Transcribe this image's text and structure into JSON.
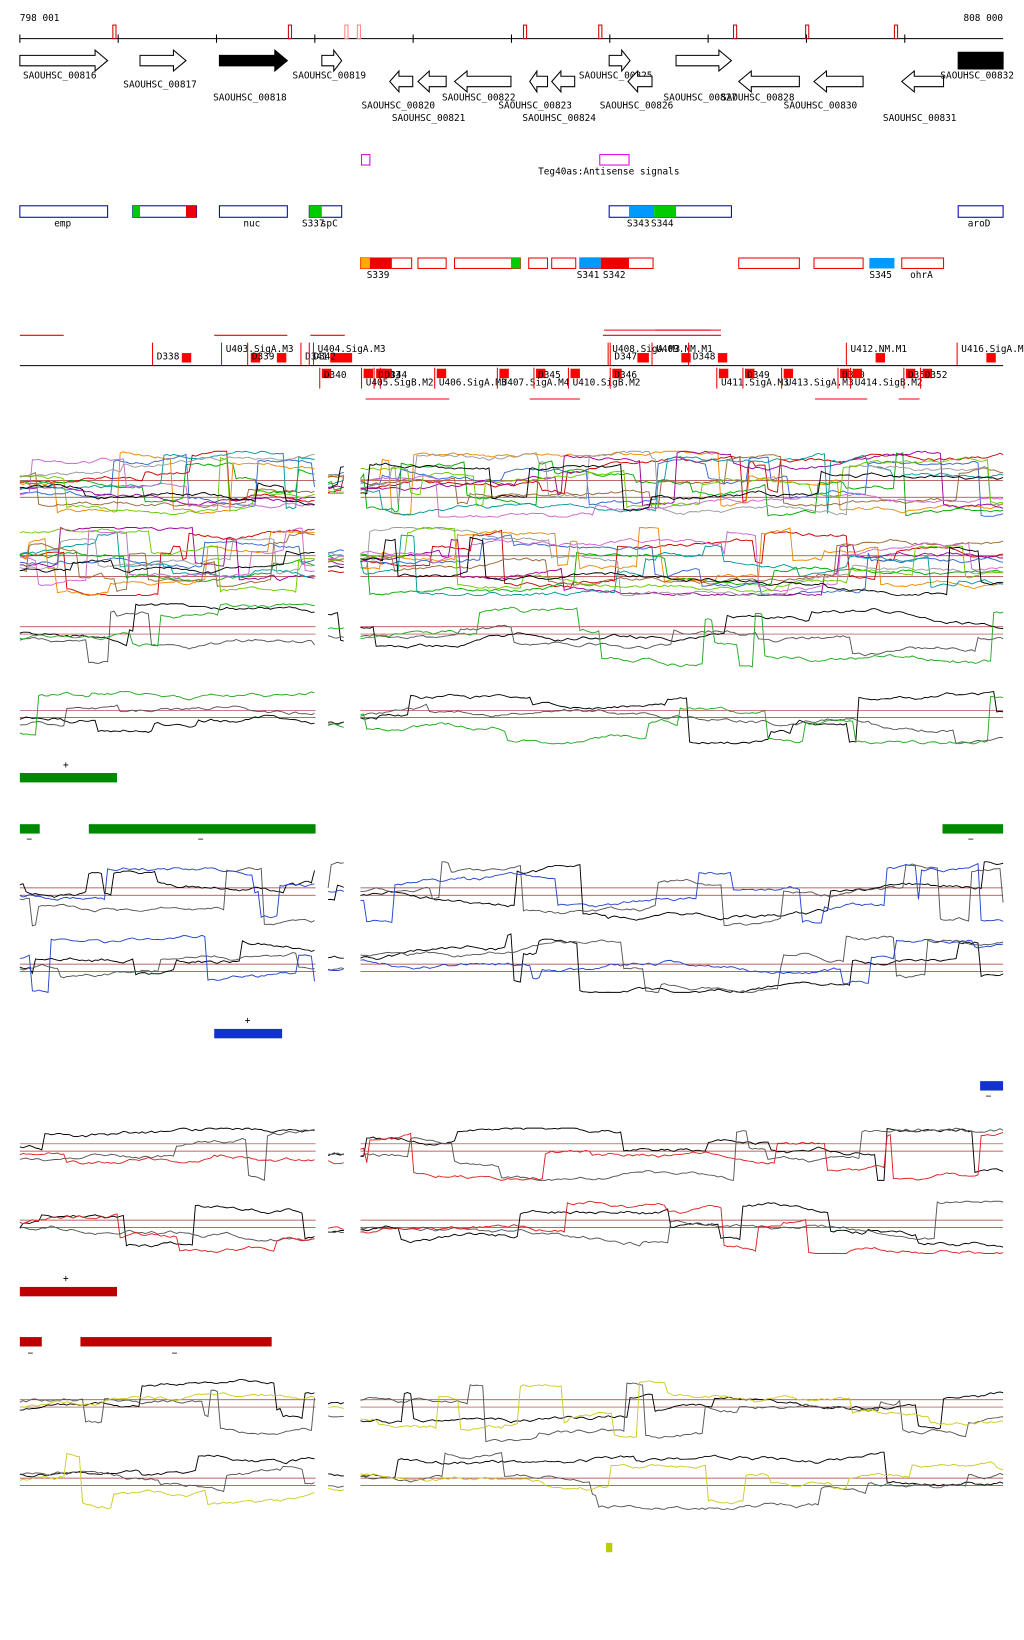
{
  "header": {
    "start": "798 001",
    "end": "808 000"
  },
  "genes": [
    "SAOUHSC_00816",
    "SAOUHSC_00817",
    "SAOUHSC_00818",
    "SAOUHSC_00819",
    "SAOUHSC_00820",
    "SAOUHSC_00821",
    "SAOUHSC_00822",
    "SAOUHSC_00823",
    "SAOUHSC_00824",
    "SAOUHSC_00825",
    "SAOUHSC_00826",
    "SAOUHSC_00827",
    "SAOUHSC_00828",
    "SAOUHSC_00830",
    "SAOUHSC_00831",
    "SAOUHSC_00832"
  ],
  "antisense": {
    "label": "Teg40as:Antisense signals"
  },
  "features": [
    "emp",
    "nuc",
    "S337",
    "spC",
    "S343",
    "S344",
    "aroD"
  ],
  "segments": [
    "S339",
    "S341",
    "S342",
    "S345",
    "ohrA"
  ],
  "promoters": [
    "D338",
    "U403.SigA.M3",
    "D339",
    "D341",
    "D342",
    "U404.SigA.M3",
    "D340",
    "D343",
    "D344",
    "U405.SigB.M2",
    "U406.SigA.M3",
    "U407.SigA.M4",
    "D345",
    "U410.SigB.M2",
    "D346",
    "U408.SigA.M3",
    "D347",
    "U409.NM.M1",
    "D348",
    "U411.SigA.M3",
    "D349",
    "U413.SigA.M3",
    "D350",
    "U412.NM.M1",
    "U414.SigB.M2",
    "D351",
    "D352",
    "U416.SigA.M"
  ],
  "strand_marks": {
    "plus": "+",
    "minus": "−"
  }
}
